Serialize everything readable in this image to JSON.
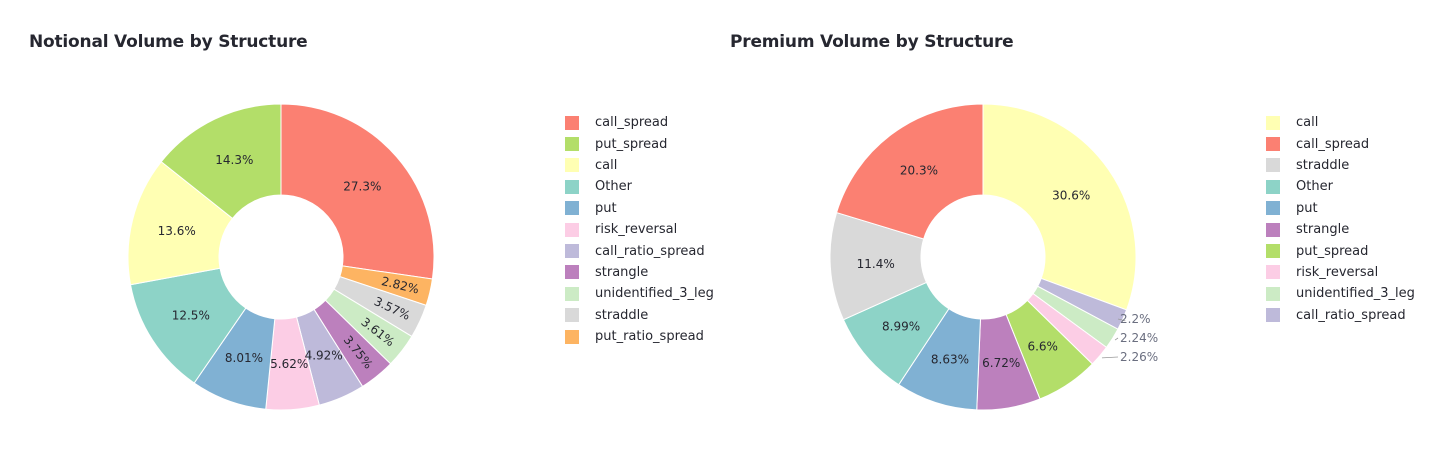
{
  "chart_data": [
    {
      "type": "pie",
      "title": "Notional Volume by Structure",
      "hole": true,
      "slices": [
        {
          "label": "call_spread",
          "value": 27.3,
          "text": "27.3%",
          "color": "#fb8072"
        },
        {
          "label": "put_ratio_spread",
          "value": 2.82,
          "text": "2.82%",
          "color": "#fdb462"
        },
        {
          "label": "straddle",
          "value": 3.57,
          "text": "3.57%",
          "color": "#d9d9d9"
        },
        {
          "label": "unidentified_3_leg",
          "value": 3.61,
          "text": "3.61%",
          "color": "#ccebc5"
        },
        {
          "label": "strangle",
          "value": 3.75,
          "text": "3.75%",
          "color": "#bc80bd"
        },
        {
          "label": "call_ratio_spread",
          "value": 4.92,
          "text": "4.92%",
          "color": "#bebada"
        },
        {
          "label": "risk_reversal",
          "value": 5.62,
          "text": "5.62%",
          "color": "#fccde5"
        },
        {
          "label": "put",
          "value": 8.01,
          "text": "8.01%",
          "color": "#80b1d3"
        },
        {
          "label": "Other",
          "value": 12.5,
          "text": "12.5%",
          "color": "#8dd3c7"
        },
        {
          "label": "call",
          "value": 13.6,
          "text": "13.6%",
          "color": "#ffffb3"
        },
        {
          "label": "put_spread",
          "value": 14.3,
          "text": "14.3%",
          "color": "#b3de69"
        }
      ],
      "legend": [
        "call_spread",
        "put_spread",
        "call",
        "Other",
        "put",
        "risk_reversal",
        "call_ratio_spread",
        "strangle",
        "unidentified_3_leg",
        "straddle",
        "put_ratio_spread"
      ],
      "legend_position": "right"
    },
    {
      "type": "pie",
      "title": "Premium Volume by Structure",
      "hole": true,
      "slices": [
        {
          "label": "call",
          "value": 30.6,
          "text": "30.6%",
          "color": "#ffffb3"
        },
        {
          "label": "call_ratio_spread",
          "value": 2.2,
          "text": "2.2%",
          "color": "#bebada"
        },
        {
          "label": "unidentified_3_leg",
          "value": 2.24,
          "text": "2.24%",
          "color": "#ccebc5"
        },
        {
          "label": "risk_reversal",
          "value": 2.26,
          "text": "2.26%",
          "color": "#fccde5"
        },
        {
          "label": "put_spread",
          "value": 6.6,
          "text": "6.6%",
          "color": "#b3de69"
        },
        {
          "label": "strangle",
          "value": 6.72,
          "text": "6.72%",
          "color": "#bc80bd"
        },
        {
          "label": "put",
          "value": 8.63,
          "text": "8.63%",
          "color": "#80b1d3"
        },
        {
          "label": "Other",
          "value": 8.99,
          "text": "8.99%",
          "color": "#8dd3c7"
        },
        {
          "label": "straddle",
          "value": 11.4,
          "text": "11.4%",
          "color": "#d9d9d9"
        },
        {
          "label": "call_spread",
          "value": 20.3,
          "text": "20.3%",
          "color": "#fb8072"
        }
      ],
      "legend": [
        "call",
        "call_spread",
        "straddle",
        "Other",
        "put",
        "strangle",
        "put_spread",
        "risk_reversal",
        "unidentified_3_leg",
        "call_ratio_spread"
      ],
      "legend_position": "right"
    }
  ]
}
